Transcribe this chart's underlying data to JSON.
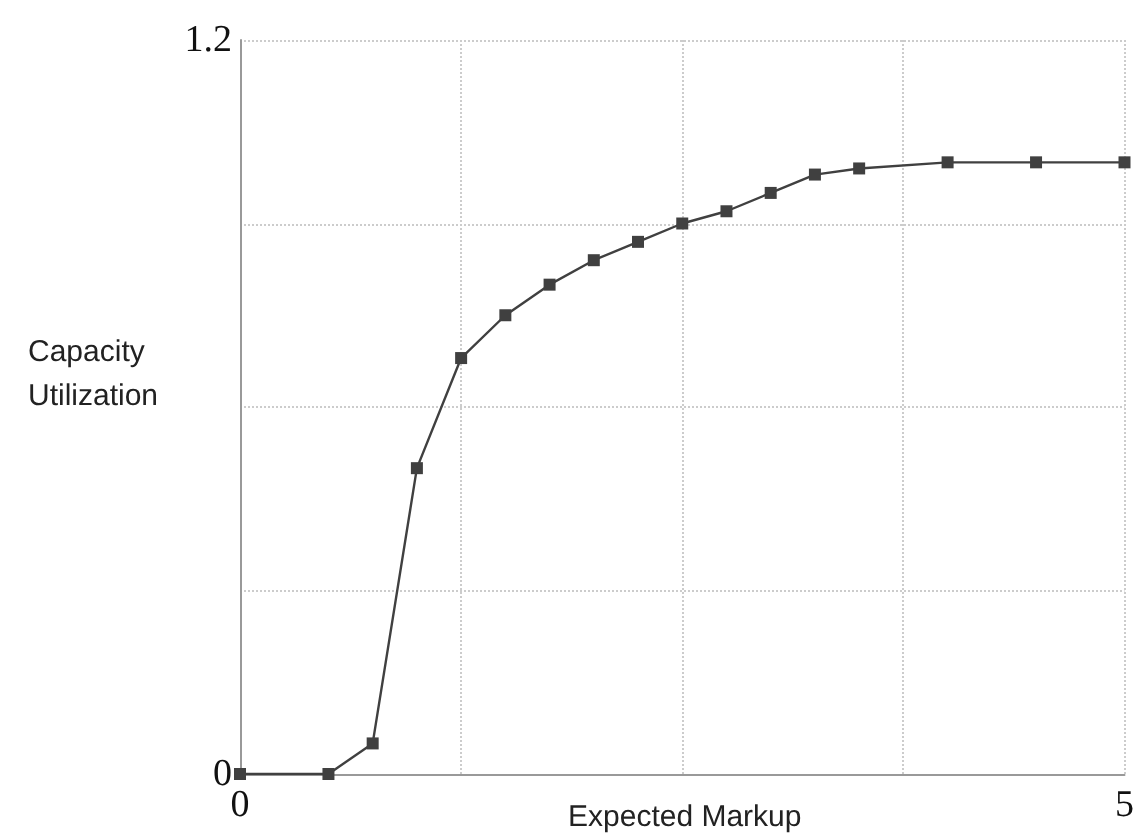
{
  "chart_data": {
    "type": "line",
    "xlabel": "Expected Markup",
    "ylabel": "Capacity\nUtilization",
    "x": [
      0,
      0.5,
      0.75,
      1,
      1.25,
      1.5,
      1.75,
      2,
      2.25,
      2.5,
      2.75,
      3,
      3.25,
      3.5,
      4,
      4.5,
      5
    ],
    "series": [
      {
        "color": "#404040",
        "values": [
          0,
          0,
          0.05,
          0.5,
          0.68,
          0.75,
          0.8,
          0.84,
          0.87,
          0.9,
          0.92,
          0.95,
          0.98,
          0.99,
          1.0,
          1.0,
          1.0
        ]
      }
    ],
    "xlim": [
      0,
      5
    ],
    "ylim": [
      0,
      1.2
    ],
    "xticks": [
      0,
      {
        "value": 1.25,
        "label": null
      },
      {
        "value": 2.5,
        "label": null
      },
      {
        "value": 3.75,
        "label": null
      },
      5
    ],
    "yticks": [
      0,
      {
        "value": 0.3,
        "label": null
      },
      {
        "value": 0.6,
        "label": null
      },
      {
        "value": 0.9,
        "label": null
      },
      1.2
    ],
    "grid": true,
    "marker": "square",
    "line_style": "solid"
  }
}
